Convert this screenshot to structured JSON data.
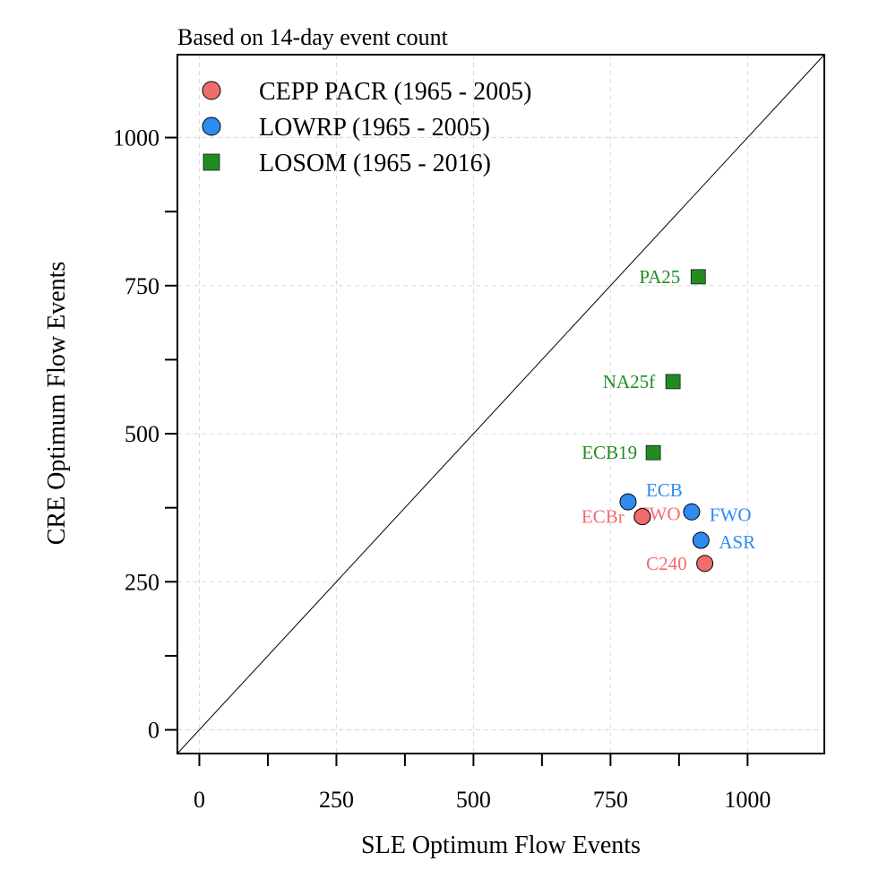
{
  "chart_data": {
    "type": "scatter",
    "subtitle": "Based on 14-day event count",
    "xlabel": "SLE Optimum Flow Events",
    "ylabel": "CRE Optimum Flow Events",
    "xlim": [
      -40,
      1140
    ],
    "ylim": [
      -40,
      1140
    ],
    "xticks": [
      0,
      250,
      500,
      750,
      1000
    ],
    "yticks": [
      0,
      250,
      500,
      750,
      1000
    ],
    "minor_ticks": [
      125,
      375,
      625,
      875
    ],
    "grid": true,
    "reference_line": "1:1",
    "legend_position": "top-left",
    "series": [
      {
        "name": "CEPP PACR (1965 - 2005)",
        "marker": "circle",
        "color": "#F26C6C",
        "points": [
          {
            "label": "ECBr",
            "x": 808,
            "y": 360
          },
          {
            "label": "FWO",
            "x": 808,
            "y": 360
          },
          {
            "label": "C240",
            "x": 922,
            "y": 281
          }
        ]
      },
      {
        "name": "LOWRP (1965 - 2005)",
        "marker": "circle",
        "color": "#2E8BF0",
        "points": [
          {
            "label": "ECB",
            "x": 782,
            "y": 385
          },
          {
            "label": "FWO",
            "x": 898,
            "y": 368
          },
          {
            "label": "ASR",
            "x": 915,
            "y": 320
          }
        ]
      },
      {
        "name": "LOSOM (1965 - 2016)",
        "marker": "square",
        "color": "#228B22",
        "points": [
          {
            "label": "PA25",
            "x": 910,
            "y": 765
          },
          {
            "label": "NA25f",
            "x": 864,
            "y": 588
          },
          {
            "label": "ECB19",
            "x": 828,
            "y": 468
          }
        ]
      }
    ]
  }
}
